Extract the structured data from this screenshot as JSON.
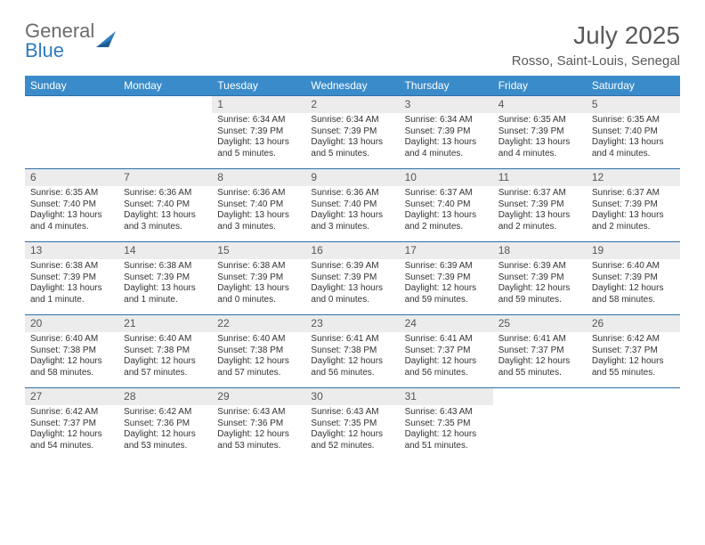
{
  "logo": {
    "line1": "General",
    "line2": "Blue"
  },
  "title": "July 2025",
  "location": "Rosso, Saint-Louis, Senegal",
  "colors": {
    "header_bg": "#3a8bc9",
    "header_text": "#ffffff",
    "daynum_bg": "#ececec",
    "row_border": "#2f6fa8",
    "logo_gray": "#6b6b6b",
    "logo_blue": "#2f7bbf"
  },
  "dayHeaders": [
    "Sunday",
    "Monday",
    "Tuesday",
    "Wednesday",
    "Thursday",
    "Friday",
    "Saturday"
  ],
  "weeks": [
    [
      {
        "empty": true
      },
      {
        "empty": true
      },
      {
        "num": "1",
        "sunrise": "6:34 AM",
        "sunset": "7:39 PM",
        "daylight": "13 hours and 5 minutes."
      },
      {
        "num": "2",
        "sunrise": "6:34 AM",
        "sunset": "7:39 PM",
        "daylight": "13 hours and 5 minutes."
      },
      {
        "num": "3",
        "sunrise": "6:34 AM",
        "sunset": "7:39 PM",
        "daylight": "13 hours and 4 minutes."
      },
      {
        "num": "4",
        "sunrise": "6:35 AM",
        "sunset": "7:39 PM",
        "daylight": "13 hours and 4 minutes."
      },
      {
        "num": "5",
        "sunrise": "6:35 AM",
        "sunset": "7:40 PM",
        "daylight": "13 hours and 4 minutes."
      }
    ],
    [
      {
        "num": "6",
        "sunrise": "6:35 AM",
        "sunset": "7:40 PM",
        "daylight": "13 hours and 4 minutes."
      },
      {
        "num": "7",
        "sunrise": "6:36 AM",
        "sunset": "7:40 PM",
        "daylight": "13 hours and 3 minutes."
      },
      {
        "num": "8",
        "sunrise": "6:36 AM",
        "sunset": "7:40 PM",
        "daylight": "13 hours and 3 minutes."
      },
      {
        "num": "9",
        "sunrise": "6:36 AM",
        "sunset": "7:40 PM",
        "daylight": "13 hours and 3 minutes."
      },
      {
        "num": "10",
        "sunrise": "6:37 AM",
        "sunset": "7:40 PM",
        "daylight": "13 hours and 2 minutes."
      },
      {
        "num": "11",
        "sunrise": "6:37 AM",
        "sunset": "7:39 PM",
        "daylight": "13 hours and 2 minutes."
      },
      {
        "num": "12",
        "sunrise": "6:37 AM",
        "sunset": "7:39 PM",
        "daylight": "13 hours and 2 minutes."
      }
    ],
    [
      {
        "num": "13",
        "sunrise": "6:38 AM",
        "sunset": "7:39 PM",
        "daylight": "13 hours and 1 minute."
      },
      {
        "num": "14",
        "sunrise": "6:38 AM",
        "sunset": "7:39 PM",
        "daylight": "13 hours and 1 minute."
      },
      {
        "num": "15",
        "sunrise": "6:38 AM",
        "sunset": "7:39 PM",
        "daylight": "13 hours and 0 minutes."
      },
      {
        "num": "16",
        "sunrise": "6:39 AM",
        "sunset": "7:39 PM",
        "daylight": "13 hours and 0 minutes."
      },
      {
        "num": "17",
        "sunrise": "6:39 AM",
        "sunset": "7:39 PM",
        "daylight": "12 hours and 59 minutes."
      },
      {
        "num": "18",
        "sunrise": "6:39 AM",
        "sunset": "7:39 PM",
        "daylight": "12 hours and 59 minutes."
      },
      {
        "num": "19",
        "sunrise": "6:40 AM",
        "sunset": "7:39 PM",
        "daylight": "12 hours and 58 minutes."
      }
    ],
    [
      {
        "num": "20",
        "sunrise": "6:40 AM",
        "sunset": "7:38 PM",
        "daylight": "12 hours and 58 minutes."
      },
      {
        "num": "21",
        "sunrise": "6:40 AM",
        "sunset": "7:38 PM",
        "daylight": "12 hours and 57 minutes."
      },
      {
        "num": "22",
        "sunrise": "6:40 AM",
        "sunset": "7:38 PM",
        "daylight": "12 hours and 57 minutes."
      },
      {
        "num": "23",
        "sunrise": "6:41 AM",
        "sunset": "7:38 PM",
        "daylight": "12 hours and 56 minutes."
      },
      {
        "num": "24",
        "sunrise": "6:41 AM",
        "sunset": "7:37 PM",
        "daylight": "12 hours and 56 minutes."
      },
      {
        "num": "25",
        "sunrise": "6:41 AM",
        "sunset": "7:37 PM",
        "daylight": "12 hours and 55 minutes."
      },
      {
        "num": "26",
        "sunrise": "6:42 AM",
        "sunset": "7:37 PM",
        "daylight": "12 hours and 55 minutes."
      }
    ],
    [
      {
        "num": "27",
        "sunrise": "6:42 AM",
        "sunset": "7:37 PM",
        "daylight": "12 hours and 54 minutes."
      },
      {
        "num": "28",
        "sunrise": "6:42 AM",
        "sunset": "7:36 PM",
        "daylight": "12 hours and 53 minutes."
      },
      {
        "num": "29",
        "sunrise": "6:43 AM",
        "sunset": "7:36 PM",
        "daylight": "12 hours and 53 minutes."
      },
      {
        "num": "30",
        "sunrise": "6:43 AM",
        "sunset": "7:35 PM",
        "daylight": "12 hours and 52 minutes."
      },
      {
        "num": "31",
        "sunrise": "6:43 AM",
        "sunset": "7:35 PM",
        "daylight": "12 hours and 51 minutes."
      },
      {
        "empty": true
      },
      {
        "empty": true
      }
    ]
  ],
  "labels": {
    "sunrise": "Sunrise:",
    "sunset": "Sunset:",
    "daylight": "Daylight:"
  }
}
